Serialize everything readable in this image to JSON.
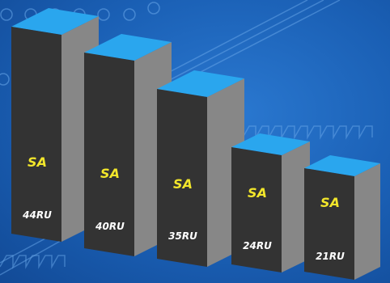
{
  "brand_label": "SA",
  "colors": {
    "background": "#1a5fb4",
    "rack_front": "#333333",
    "rack_side": "#878787",
    "rack_top": "#2aa6ee",
    "brand_text": "#f2e62b",
    "size_text": "#ffffff"
  },
  "racks": [
    {
      "id": "rack-44",
      "size_label": "44RU"
    },
    {
      "id": "rack-40",
      "size_label": "40RU"
    },
    {
      "id": "rack-35",
      "size_label": "35RU"
    },
    {
      "id": "rack-24",
      "size_label": "24RU"
    },
    {
      "id": "rack-21",
      "size_label": "21RU"
    }
  ]
}
